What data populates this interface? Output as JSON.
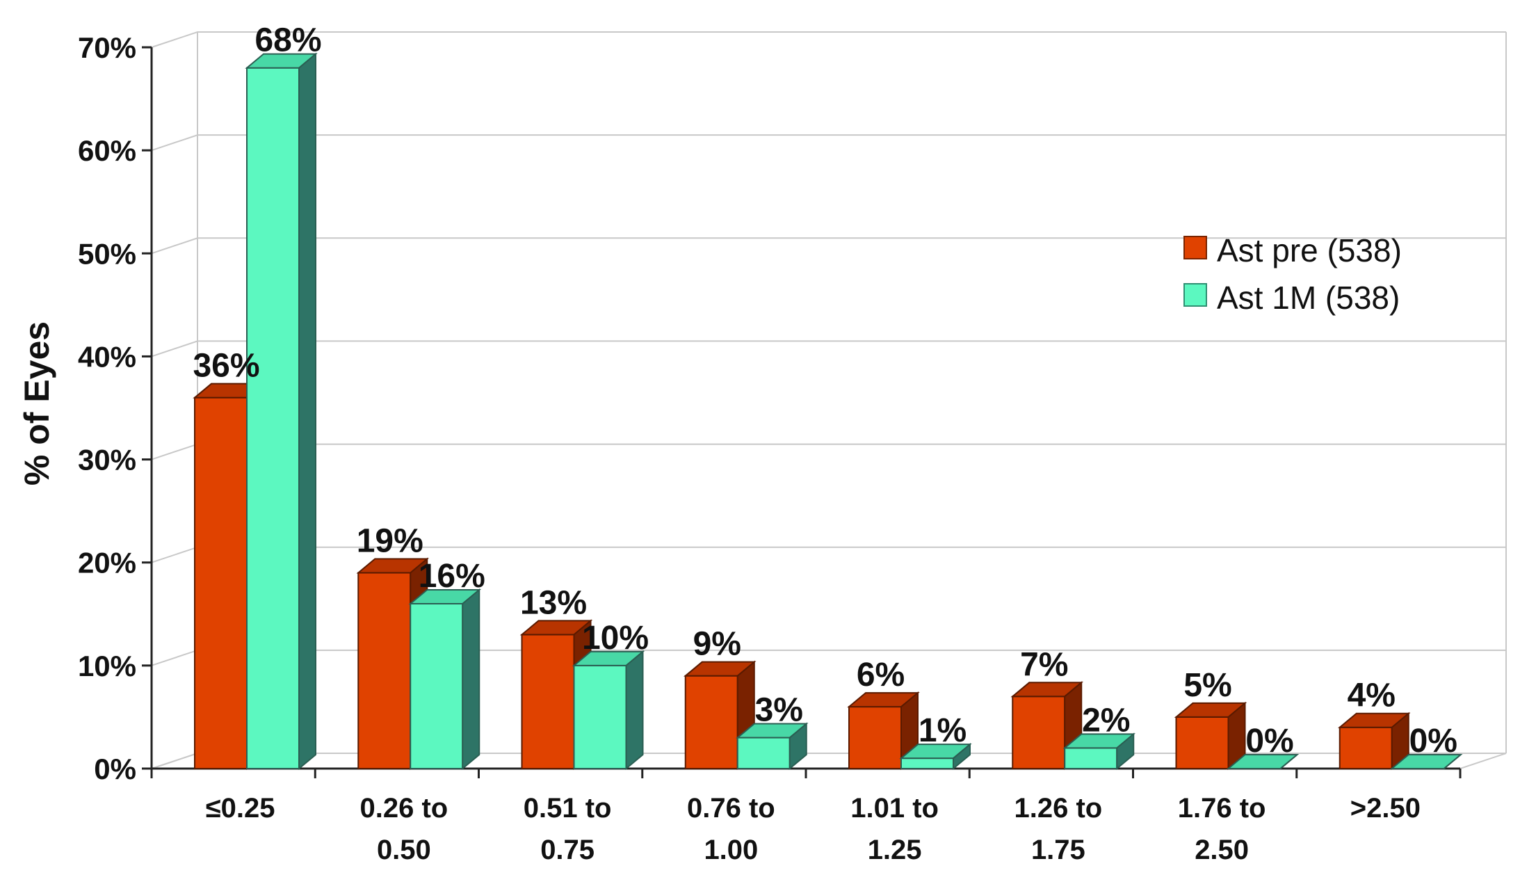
{
  "chart_data": {
    "type": "bar",
    "ylabel": "% of Eyes",
    "xlabel": "",
    "ylim": [
      0,
      70
    ],
    "yticks": [
      "0%",
      "10%",
      "20%",
      "30%",
      "40%",
      "50%",
      "60%",
      "70%"
    ],
    "categories": [
      [
        "≤0.25"
      ],
      [
        "0.26 to",
        "0.50"
      ],
      [
        "0.51 to",
        "0.75"
      ],
      [
        "0.76 to",
        "1.00"
      ],
      [
        "1.01 to",
        "1.25"
      ],
      [
        "1.26 to",
        "1.75"
      ],
      [
        "1.76 to",
        "2.50"
      ],
      [
        ">2.50"
      ]
    ],
    "series": [
      {
        "name": "Ast pre (538)",
        "values": [
          36,
          19,
          13,
          9,
          6,
          7,
          5,
          4
        ],
        "labels": [
          "36%",
          "19%",
          "13%",
          "9%",
          "6%",
          "7%",
          "5%",
          "4%"
        ],
        "color": "#E04200"
      },
      {
        "name": "Ast 1M (538)",
        "values": [
          68,
          16,
          10,
          3,
          1,
          2,
          0,
          0
        ],
        "labels": [
          "68%",
          "16%",
          "10%",
          "3%",
          "1%",
          "2%",
          "0%",
          "0%"
        ],
        "color": "#5CF8C0"
      }
    ],
    "legend": "right",
    "grid": true,
    "style": "3d-column"
  }
}
